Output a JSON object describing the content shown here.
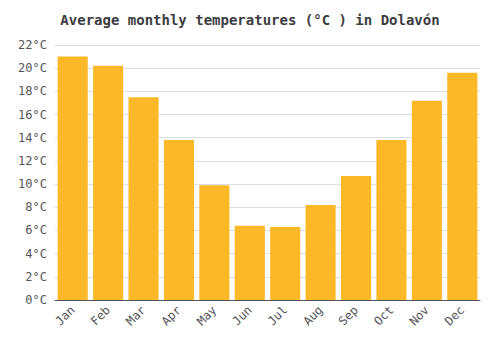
{
  "chart_data": {
    "type": "bar",
    "title": "Average monthly temperatures (°C ) in Dolavón",
    "categories": [
      "Jan",
      "Feb",
      "Mar",
      "Apr",
      "May",
      "Jun",
      "Jul",
      "Aug",
      "Sep",
      "Oct",
      "Nov",
      "Dec"
    ],
    "values": [
      21.0,
      20.2,
      17.5,
      13.8,
      9.9,
      6.4,
      6.3,
      8.2,
      10.7,
      13.8,
      17.2,
      19.6
    ],
    "color": "#FDB827",
    "ylim": [
      0,
      22
    ],
    "yticks": [
      {
        "value": 0,
        "label": "0°C"
      },
      {
        "value": 2,
        "label": "2°C"
      },
      {
        "value": 4,
        "label": "4°C"
      },
      {
        "value": 6,
        "label": "6°C"
      },
      {
        "value": 8,
        "label": "8°C"
      },
      {
        "value": 10,
        "label": "10°C"
      },
      {
        "value": 12,
        "label": "12°C"
      },
      {
        "value": 14,
        "label": "14°C"
      },
      {
        "value": 16,
        "label": "16°C"
      },
      {
        "value": 18,
        "label": "18°C"
      },
      {
        "value": 20,
        "label": "20°C"
      },
      {
        "value": 22,
        "label": "22°C"
      }
    ],
    "grid": true
  }
}
